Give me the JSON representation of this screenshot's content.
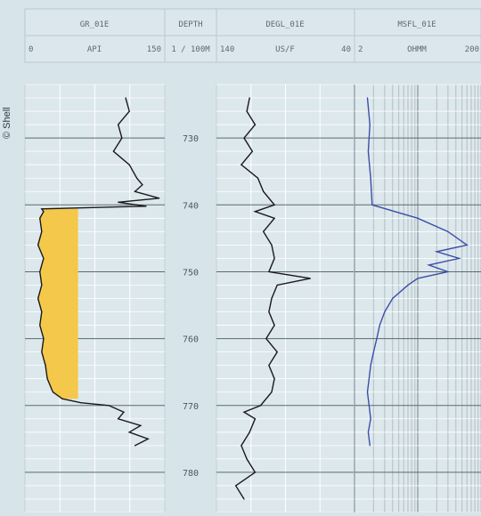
{
  "copyright": "© Shell",
  "headers": {
    "track1": {
      "curve": "GR_01E",
      "left": "0",
      "unit": "API",
      "right": "150"
    },
    "depth": {
      "title": "DEPTH",
      "unit": "1 / 100M"
    },
    "track2": {
      "curve": "DEGL_01E",
      "left": "140",
      "unit": "US/F",
      "right": "40"
    },
    "track3": {
      "curve": "MSFL_01E",
      "left": "2",
      "unit": "OHMM",
      "right": "200"
    }
  },
  "colors": {
    "background": "#d7e4ea",
    "grid": "#ffffff",
    "curve": "#1a1a1a",
    "resistivity_curve": "#3b4fa8",
    "sand_fill": "#f4c84a",
    "header_lines": "#b9c8cf"
  },
  "chart_data": {
    "type": "line",
    "title": "",
    "depth_ticks": [
      "730",
      "740",
      "750",
      "760",
      "770",
      "780"
    ],
    "depth_range": [
      722,
      786
    ],
    "tracks": [
      {
        "name": "GR_01E",
        "unit": "API",
        "xlim": [
          0,
          150
        ],
        "fill": {
          "color": "#f4c84a",
          "depth_range": [
            740.5,
            769.5
          ],
          "description": ""
        },
        "series": [
          {
            "name": "GR_01E",
            "depth": [
              724,
              726,
              728,
              730,
              732,
              734,
              736,
              737,
              738,
              739,
              739.6,
              740.2,
              740.6,
              741,
              742,
              744,
              746,
              748,
              750,
              752,
              754,
              756,
              758,
              760,
              762,
              764,
              766,
              768,
              769,
              769.6,
              770,
              771,
              772,
              773,
              774,
              775,
              776
            ],
            "values": [
              108,
              112,
              100,
              104,
              95,
              112,
              120,
              126,
              118,
              144,
              100,
              130,
              18,
              20,
              16,
              18,
              14,
              20,
              16,
              18,
              14,
              18,
              16,
              20,
              18,
              22,
              24,
              30,
              40,
              60,
              90,
              106,
              100,
              124,
              112,
              132,
              118
            ]
          }
        ]
      },
      {
        "name": "DEGL_01E",
        "unit": "US/F",
        "xlim": [
          140,
          40
        ],
        "series": [
          {
            "name": "DEGL_01E",
            "depth": [
              724,
              726,
              728,
              730,
              732,
              734,
              736,
              738,
              740,
              741,
              742,
              744,
              746,
              748,
              750,
              751,
              752,
              754,
              756,
              758,
              760,
              762,
              764,
              766,
              768,
              770,
              771,
              772,
              774,
              776,
              778,
              780,
              782,
              784
            ],
            "values": [
              116,
              118,
              112,
              120,
              114,
              122,
              110,
              106,
              98,
              112,
              98,
              106,
              100,
              98,
              102,
              72,
              96,
              100,
              102,
              98,
              104,
              96,
              102,
              98,
              100,
              108,
              120,
              112,
              116,
              122,
              118,
              112,
              126,
              120
            ]
          }
        ]
      },
      {
        "name": "MSFL_01E",
        "unit": "OHMM",
        "xlim": [
          2,
          200
        ],
        "scale": "log",
        "series": [
          {
            "name": "MSFL_01E",
            "depth": [
              724,
              728,
              732,
              736,
              740,
              742,
              744,
              746,
              747,
              748,
              749,
              750,
              751,
              752,
              754,
              756,
              758,
              760,
              762,
              764,
              766,
              768,
              770,
              772,
              774,
              776
            ],
            "values": [
              3.2,
              3.5,
              3.3,
              3.6,
              3.8,
              20,
              60,
              120,
              40,
              90,
              30,
              60,
              20,
              14,
              8,
              6,
              5,
              4.5,
              4,
              3.6,
              3.4,
              3.2,
              3.4,
              3.6,
              3.3,
              3.5
            ]
          }
        ]
      }
    ]
  }
}
